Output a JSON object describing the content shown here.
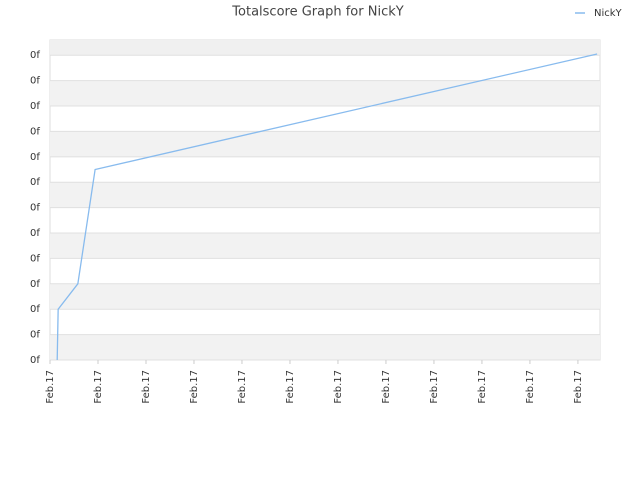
{
  "chart_data": {
    "type": "line",
    "title": "Totalscore Graph for NickY",
    "legend": "top-right",
    "series": [
      {
        "name": "NickY",
        "color": "#88bbee",
        "x": [
          0.15,
          0.17,
          0.58,
          0.94,
          11.4
        ],
        "values": [
          0,
          2,
          3,
          7.5,
          12.05
        ]
      }
    ],
    "xlim": [
      0,
      11.46
    ],
    "xticks": [
      {
        "value": 0,
        "label": "Feb.17"
      },
      {
        "value": 1,
        "label": "Feb.17"
      },
      {
        "value": 2,
        "label": "Feb.17"
      },
      {
        "value": 3,
        "label": "Feb.17"
      },
      {
        "value": 4,
        "label": "Feb.17"
      },
      {
        "value": 5,
        "label": "Feb.17"
      },
      {
        "value": 6,
        "label": "Feb.17"
      },
      {
        "value": 7,
        "label": "Feb.17"
      },
      {
        "value": 8,
        "label": "Feb.17"
      },
      {
        "value": 9,
        "label": "Feb.17"
      },
      {
        "value": 10,
        "label": "Feb.17"
      },
      {
        "value": 11,
        "label": "Feb.17"
      }
    ],
    "ylim": [
      0,
      12.6
    ],
    "yticks": [
      {
        "value": 0,
        "label": "0f"
      },
      {
        "value": 1,
        "label": "0f"
      },
      {
        "value": 2,
        "label": "0f"
      },
      {
        "value": 3,
        "label": "0f"
      },
      {
        "value": 4,
        "label": "0f"
      },
      {
        "value": 5,
        "label": "0f"
      },
      {
        "value": 6,
        "label": "0f"
      },
      {
        "value": 7,
        "label": "0f"
      },
      {
        "value": 8,
        "label": "0f"
      },
      {
        "value": 9,
        "label": "0f"
      },
      {
        "value": 10,
        "label": "0f"
      },
      {
        "value": 11,
        "label": "0f"
      },
      {
        "value": 12,
        "label": "0f"
      }
    ],
    "grid": true
  }
}
